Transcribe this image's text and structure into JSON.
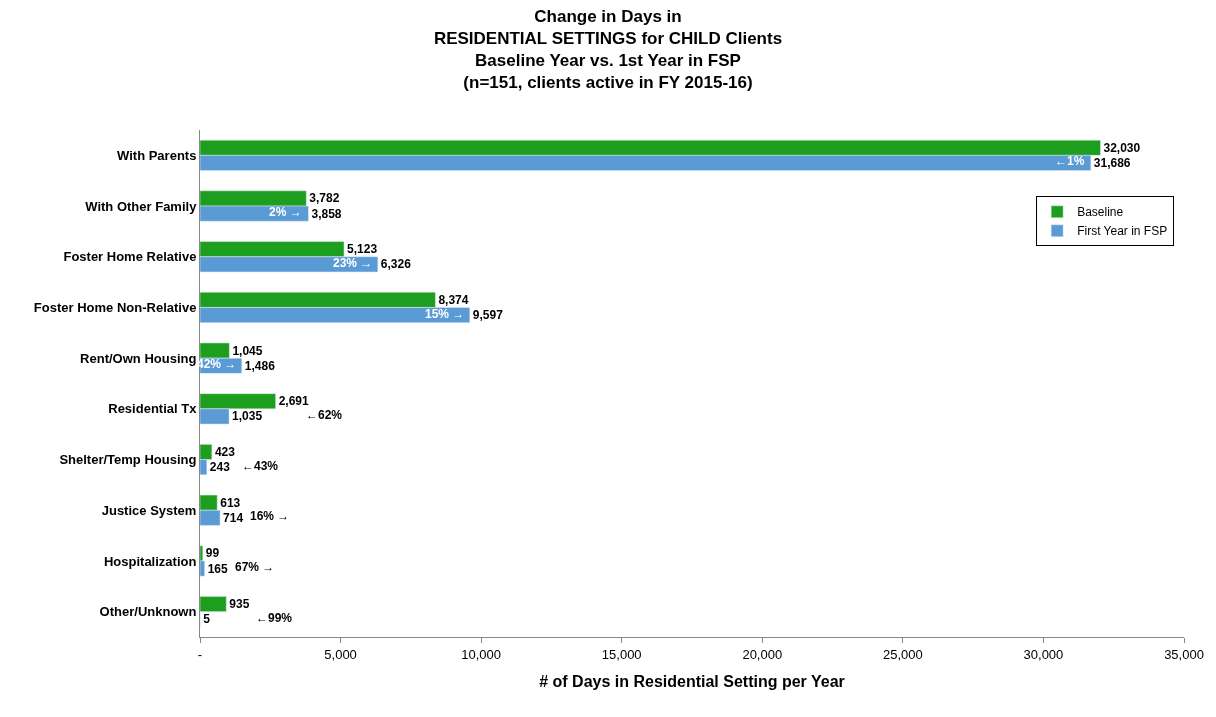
{
  "chart_data": {
    "type": "bar",
    "orientation": "horizontal",
    "title": "Change in Days in\nRESIDENTIAL SETTINGS for CHILD Clients\nBaseline Year vs. 1st Year in FSP\n(n=151, clients active in FY 2015-16)",
    "xlabel": "# of Days in Residential Setting per Year",
    "categories": [
      "With Parents",
      "With Other Family",
      "Foster Home Relative",
      "Foster Home Non-Relative",
      "Rent/Own Housing",
      "Residential Tx",
      "Shelter/Temp Housing",
      "Justice System",
      "Hospitalization",
      "Other/Unknown"
    ],
    "series": [
      {
        "name": "Baseline",
        "color": "#1e9e1e",
        "values": [
          32030,
          3782,
          5123,
          8374,
          1045,
          2691,
          423,
          613,
          99,
          935
        ],
        "value_labels": [
          "32,030",
          "3,782",
          "5,123",
          "8,374",
          "1,045",
          "2,691",
          "423",
          "613",
          "99",
          "935"
        ]
      },
      {
        "name": "First Year in FSP",
        "color": "#5b9bd5",
        "values": [
          31686,
          3858,
          6326,
          9597,
          1486,
          1035,
          243,
          714,
          165,
          5
        ],
        "value_labels": [
          "31,686",
          "3,858",
          "6,326",
          "9,597",
          "1,486",
          "1,035",
          "243",
          "714",
          "165",
          "5"
        ]
      }
    ],
    "xlim": [
      0,
      35000
    ],
    "xticks": [
      {
        "value": 0,
        "label": "-"
      },
      {
        "value": 5000,
        "label": "5,000"
      },
      {
        "value": 10000,
        "label": "10,000"
      },
      {
        "value": 15000,
        "label": "15,000"
      },
      {
        "value": 20000,
        "label": "20,000"
      },
      {
        "value": 25000,
        "label": "25,000"
      },
      {
        "value": 30000,
        "label": "30,000"
      },
      {
        "value": 35000,
        "label": "35,000"
      }
    ],
    "legend": "right",
    "annotations": [
      "←1%",
      "2% →",
      "23% →",
      "15% →",
      "42% →",
      "←62%",
      "←43%",
      "16% →",
      "67% →",
      "←99%"
    ]
  }
}
